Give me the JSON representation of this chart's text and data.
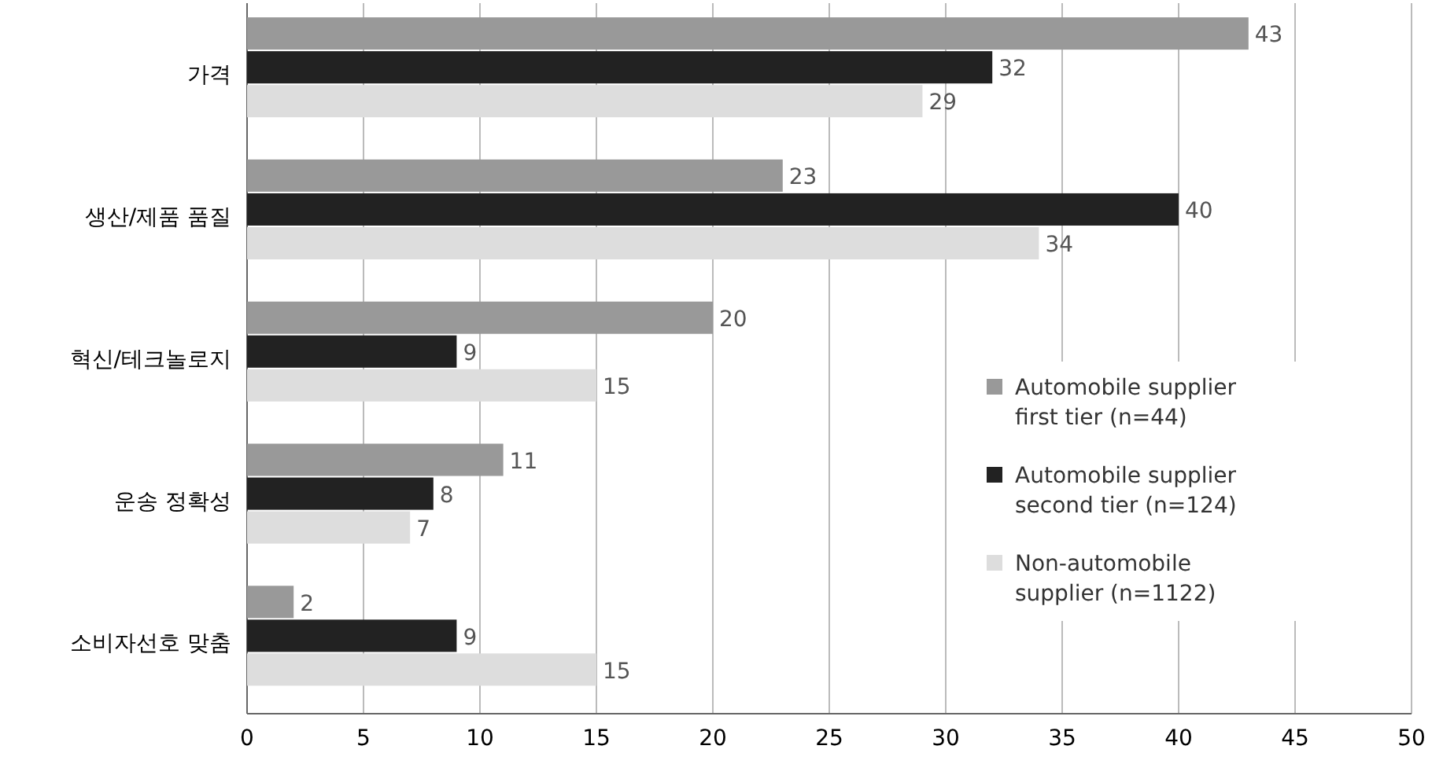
{
  "chart_data": {
    "type": "bar",
    "orientation": "horizontal",
    "categories": [
      "가격",
      "생산/제품 품질",
      "혁신/테크놀로지",
      "운송 정확성",
      "소비자선호 맞춤"
    ],
    "series": [
      {
        "name": "Automobile supplier first tier (n=44)",
        "color": "#999999",
        "values": [
          43,
          23,
          20,
          11,
          2
        ]
      },
      {
        "name": "Automobile supplier second tier (n=124)",
        "color": "#222222",
        "values": [
          32,
          40,
          9,
          8,
          9
        ]
      },
      {
        "name": "Non-automobile supplier (n=1122)",
        "color": "#dddddd",
        "values": [
          29,
          34,
          15,
          7,
          15
        ]
      }
    ],
    "xlim": [
      0,
      50
    ],
    "xticks": [
      0,
      5,
      10,
      15,
      20,
      25,
      30,
      35,
      40,
      45,
      50
    ],
    "grid": "x",
    "legend": "right",
    "data_labels": true
  }
}
